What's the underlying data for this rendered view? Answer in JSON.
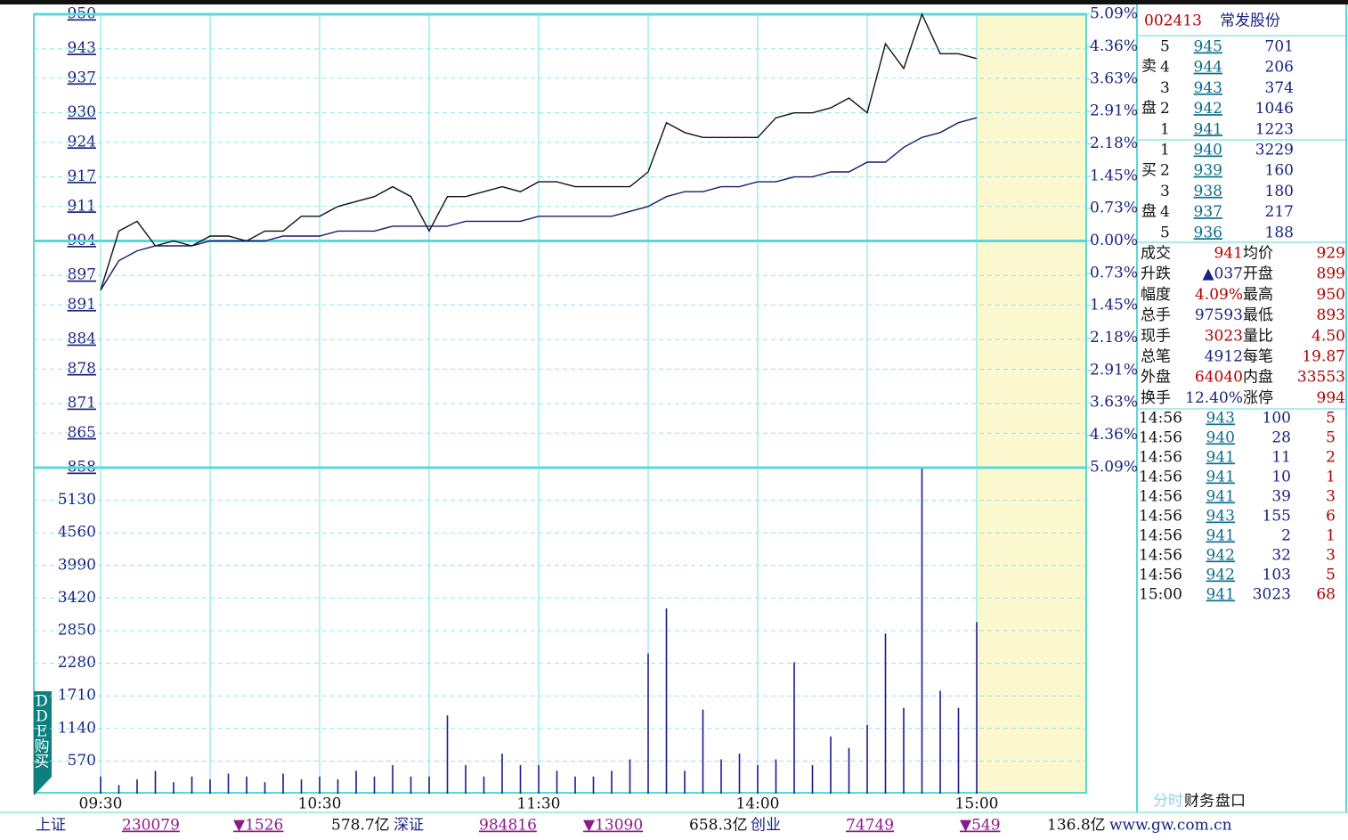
{
  "chart_data": [
    {
      "type": "line",
      "x": [
        0,
        5,
        10,
        15,
        20,
        25,
        30,
        35,
        40,
        45,
        50,
        55,
        60,
        65,
        70,
        75,
        80,
        85,
        90,
        95,
        100,
        105,
        110,
        115,
        120,
        125,
        130,
        135,
        140,
        145,
        150,
        155,
        160,
        165,
        170,
        175,
        180,
        185,
        190,
        195,
        200,
        205,
        210,
        215,
        220,
        225,
        230,
        235,
        240
      ],
      "xlim": [
        0,
        240
      ],
      "xticks": [
        {
          "value": 0,
          "label": "09:30"
        },
        {
          "value": 60,
          "label": "10:30"
        },
        {
          "value": 120,
          "label": "11:30"
        },
        {
          "value": 180,
          "label": "14:00"
        },
        {
          "value": 240,
          "label": "15:00"
        }
      ],
      "ylim": [
        858,
        950
      ],
      "yticks": [
        950,
        943,
        937,
        930,
        924,
        917,
        911,
        904,
        897,
        891,
        884,
        878,
        871,
        865,
        858
      ],
      "y2lim": [
        -5.09,
        5.09
      ],
      "y2ticks": [
        {
          "value": 5.09,
          "label": "5.09%"
        },
        {
          "value": 4.36,
          "label": "4.36%"
        },
        {
          "value": 3.63,
          "label": "3.63%"
        },
        {
          "value": 2.91,
          "label": "2.91%"
        },
        {
          "value": 2.18,
          "label": "2.18%"
        },
        {
          "value": 1.45,
          "label": "1.45%"
        },
        {
          "value": 0.73,
          "label": "0.73%"
        },
        {
          "value": 0,
          "label": "0.00%"
        },
        {
          "value": -0.73,
          "label": "0.73%"
        },
        {
          "value": -1.45,
          "label": "1.45%"
        },
        {
          "value": -2.18,
          "label": "2.18%"
        },
        {
          "value": -2.91,
          "label": "2.91%"
        },
        {
          "value": -3.63,
          "label": "3.63%"
        },
        {
          "value": -4.36,
          "label": "4.36%"
        },
        {
          "value": -5.09,
          "label": "5.09%"
        }
      ],
      "grid": true,
      "series": [
        {
          "color": "#111111",
          "values": [
            894,
            906,
            908,
            903,
            904,
            903,
            905,
            905,
            904,
            906,
            906,
            909,
            909,
            911,
            912,
            913,
            915,
            913,
            906,
            913,
            913,
            914,
            915,
            914,
            916,
            916,
            915,
            915,
            915,
            915,
            918,
            928,
            926,
            925,
            925,
            925,
            925,
            929,
            930,
            930,
            931,
            933,
            930,
            944,
            939,
            950,
            942,
            942,
            941
          ]
        },
        {
          "color": "#1a1a6e",
          "values": [
            894,
            900,
            902,
            903,
            903,
            903,
            904,
            904,
            904,
            904,
            905,
            905,
            905,
            906,
            906,
            906,
            907,
            907,
            907,
            907,
            908,
            908,
            908,
            908,
            909,
            909,
            909,
            909,
            909,
            910,
            911,
            913,
            914,
            914,
            915,
            915,
            916,
            916,
            917,
            917,
            918,
            918,
            920,
            920,
            923,
            925,
            926,
            928,
            929
          ]
        }
      ]
    },
    {
      "type": "bar",
      "x": [
        0,
        5,
        10,
        15,
        20,
        25,
        30,
        35,
        40,
        45,
        50,
        55,
        60,
        65,
        70,
        75,
        80,
        85,
        90,
        95,
        100,
        105,
        110,
        115,
        120,
        125,
        130,
        135,
        140,
        145,
        150,
        155,
        160,
        165,
        170,
        175,
        180,
        185,
        190,
        195,
        200,
        205,
        210,
        215,
        220,
        225,
        230,
        235,
        240
      ],
      "xlim": [
        0,
        240
      ],
      "values": [
        300,
        150,
        250,
        400,
        200,
        300,
        250,
        350,
        300,
        200,
        350,
        250,
        300,
        250,
        400,
        300,
        500,
        300,
        300,
        1370,
        500,
        300,
        700,
        500,
        500,
        400,
        300,
        300,
        400,
        600,
        2450,
        3240,
        400,
        1470,
        600,
        700,
        500,
        600,
        2300,
        500,
        1000,
        800,
        1200,
        2800,
        1500,
        5680,
        1800,
        1500,
        3000
      ],
      "color": "#1a1a8c",
      "ylim": [
        0,
        5700
      ],
      "yticks": [
        570,
        1140,
        1710,
        2280,
        2850,
        3420,
        3990,
        4560,
        5130
      ],
      "grid": true
    }
  ],
  "quote": {
    "code": "002413",
    "name": "常发股份",
    "sell_label": [
      "卖",
      "盘"
    ],
    "buy_label": [
      "买",
      "盘"
    ],
    "sell": [
      [
        "5",
        "945",
        "701"
      ],
      [
        "4",
        "944",
        "206"
      ],
      [
        "3",
        "943",
        "374"
      ],
      [
        "2",
        "942",
        "1046"
      ],
      [
        "1",
        "941",
        "1223"
      ]
    ],
    "buy": [
      [
        "1",
        "940",
        "3229"
      ],
      [
        "2",
        "939",
        "160"
      ],
      [
        "3",
        "938",
        "180"
      ],
      [
        "4",
        "937",
        "217"
      ],
      [
        "5",
        "936",
        "188"
      ]
    ],
    "stats": [
      [
        "成交",
        "941",
        "均价",
        "929"
      ],
      [
        "升跌",
        "▲037",
        "开盘",
        "899"
      ],
      [
        "幅度",
        "4.09%",
        "最高",
        "950"
      ],
      [
        "总手",
        "97593",
        "最低",
        "893"
      ],
      [
        "现手",
        "3023",
        "量比",
        "4.50"
      ],
      [
        "总笔",
        "4912",
        "每笔",
        "19.87"
      ],
      [
        "外盘",
        "64040",
        "内盘",
        "33553"
      ],
      [
        "换手",
        "12.40%",
        "涨停",
        "994"
      ]
    ],
    "trades": [
      [
        "14:56",
        "943",
        "100",
        "5"
      ],
      [
        "14:56",
        "940",
        "28",
        "5"
      ],
      [
        "14:56",
        "941",
        "11",
        "2"
      ],
      [
        "14:56",
        "941",
        "10",
        "1"
      ],
      [
        "14:56",
        "941",
        "39",
        "3"
      ],
      [
        "14:56",
        "943",
        "155",
        "6"
      ],
      [
        "14:56",
        "941",
        "2",
        "1"
      ],
      [
        "14:56",
        "942",
        "32",
        "3"
      ],
      [
        "14:56",
        "942",
        "103",
        "5"
      ],
      [
        "15:00",
        "941",
        "3023",
        "68"
      ]
    ],
    "tabs": [
      "分时",
      "财务",
      "盘口"
    ]
  },
  "side_button": [
    "D",
    "D",
    "E",
    "购",
    "买"
  ],
  "status_bar": [
    "上证",
    "230079",
    "▼1526",
    "578.7亿",
    "深证",
    "984816",
    "▼13090",
    "658.3亿",
    "创业",
    "74749",
    "▼549",
    "136.8亿",
    "www.gw.com.cn"
  ]
}
